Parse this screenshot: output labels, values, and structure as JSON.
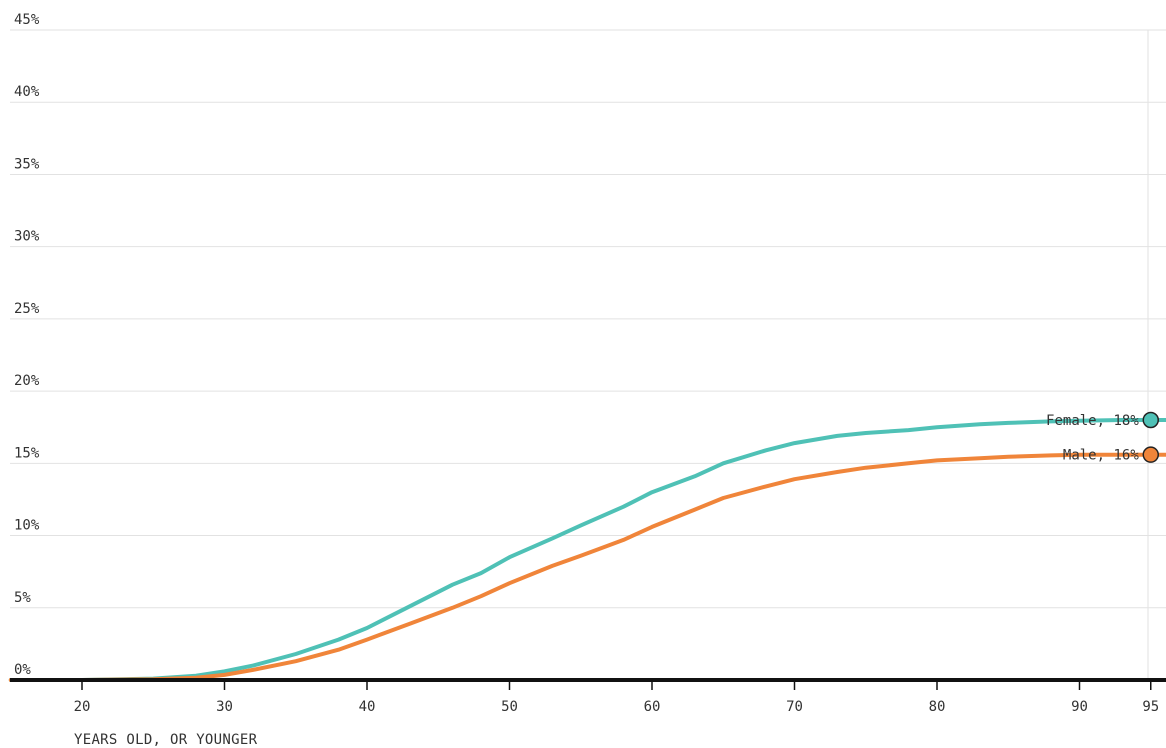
{
  "chart_data": {
    "type": "line",
    "xlabel": "YEARS OLD, OR YOUNGER",
    "ylabel": "",
    "xlim": [
      15,
      95
    ],
    "ylim": [
      0,
      45
    ],
    "x_ticks": [
      20,
      30,
      40,
      50,
      60,
      70,
      80,
      90,
      95
    ],
    "x_tick_labels": [
      "20",
      "30",
      "40",
      "50",
      "60",
      "70",
      "80",
      "90",
      "95"
    ],
    "y_ticks": [
      0,
      5,
      10,
      15,
      20,
      25,
      30,
      35,
      40,
      45
    ],
    "y_tick_labels": [
      "0%",
      "5%",
      "10%",
      "15%",
      "20%",
      "25%",
      "30%",
      "35%",
      "40%",
      "45%"
    ],
    "grid": "horizontal",
    "series": [
      {
        "name": "Female",
        "end_label": "Female, 18%",
        "color": "#4fc1b6",
        "x": [
          15,
          20,
          25,
          28,
          30,
          32,
          35,
          38,
          40,
          43,
          46,
          48,
          50,
          53,
          55,
          58,
          60,
          63,
          65,
          68,
          70,
          73,
          75,
          78,
          80,
          83,
          85,
          88,
          90,
          93,
          95
        ],
        "y": [
          0,
          0,
          0.1,
          0.3,
          0.6,
          1.0,
          1.8,
          2.8,
          3.6,
          5.1,
          6.6,
          7.4,
          8.5,
          9.8,
          10.7,
          12.0,
          13.0,
          14.1,
          15.0,
          15.9,
          16.4,
          16.9,
          17.1,
          17.3,
          17.5,
          17.7,
          17.8,
          17.9,
          17.95,
          18.0,
          18.0
        ]
      },
      {
        "name": "Male",
        "end_label": "Male, 16%",
        "color": "#f0853a",
        "x": [
          15,
          20,
          25,
          28,
          30,
          32,
          35,
          38,
          40,
          43,
          46,
          48,
          50,
          53,
          55,
          58,
          60,
          63,
          65,
          68,
          70,
          73,
          75,
          78,
          80,
          83,
          85,
          88,
          90,
          93,
          95
        ],
        "y": [
          0,
          0,
          0.05,
          0.15,
          0.35,
          0.7,
          1.3,
          2.1,
          2.8,
          3.9,
          5.0,
          5.8,
          6.7,
          7.9,
          8.6,
          9.7,
          10.6,
          11.8,
          12.6,
          13.4,
          13.9,
          14.4,
          14.7,
          15.0,
          15.2,
          15.35,
          15.45,
          15.55,
          15.6,
          15.6,
          15.6
        ]
      }
    ]
  }
}
